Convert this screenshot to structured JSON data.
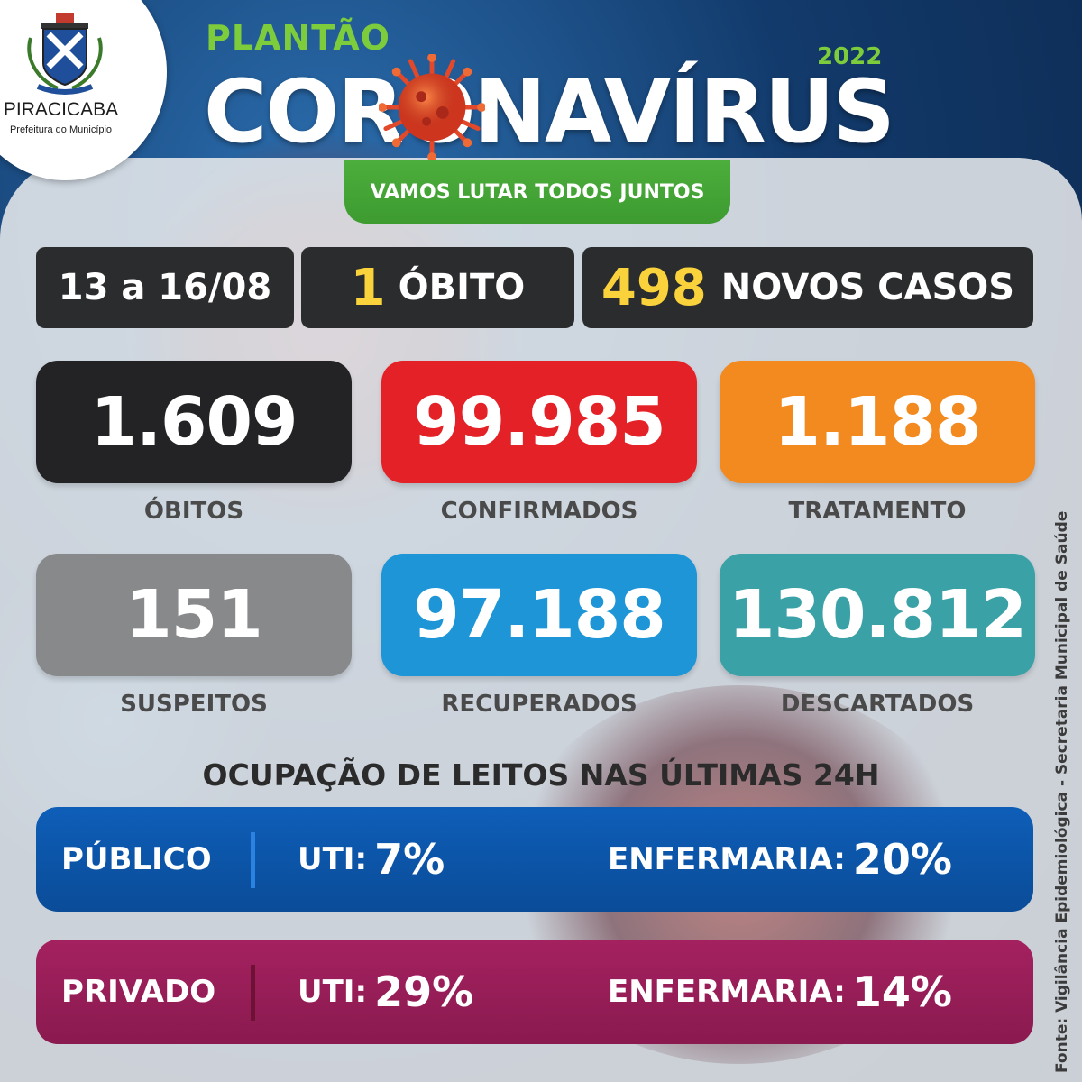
{
  "logo": {
    "city": "PIRACICABA",
    "subtitle": "Prefeitura do Município"
  },
  "header": {
    "plantao": "PLANTÃO",
    "title": "CORONAVÍRUS",
    "year": "2022",
    "slogan": "VAMOS LUTAR TODOS JUNTOS"
  },
  "summary": {
    "period": "13 a 16/08",
    "deaths_count": "1",
    "deaths_label": "ÓBITO",
    "new_cases_count": "498",
    "new_cases_label": "NOVOS CASOS"
  },
  "stats": [
    {
      "value": "1.609",
      "label": "ÓBITOS",
      "color": "#232325"
    },
    {
      "value": "99.985",
      "label": "CONFIRMADOS",
      "color": "#e42127"
    },
    {
      "value": "1.188",
      "label": "TRATAMENTO",
      "color": "#f28a1f"
    },
    {
      "value": "151",
      "label": "SUSPEITOS",
      "color": "#88898b"
    },
    {
      "value": "97.188",
      "label": "RECUPERADOS",
      "color": "#1d95d6"
    },
    {
      "value": "130.812",
      "label": "DESCARTADOS",
      "color": "#3aa1a7"
    }
  ],
  "beds": {
    "title": "OCUPAÇÃO DE LEITOS NAS ÚLTIMAS 24H",
    "public": {
      "name": "PÚBLICO",
      "uti_label": "UTI:",
      "uti_value": "7%",
      "enf_label": "ENFERMARIA:",
      "enf_value": "20%",
      "color": "#0e5eb8"
    },
    "private": {
      "name": "PRIVADO",
      "uti_label": "UTI:",
      "uti_value": "29%",
      "enf_label": "ENFERMARIA:",
      "enf_value": "14%",
      "color": "#a4215f"
    }
  },
  "source": "Fonte: Vigilância Epidemiológica - Secretaria Municipal de Saúde"
}
